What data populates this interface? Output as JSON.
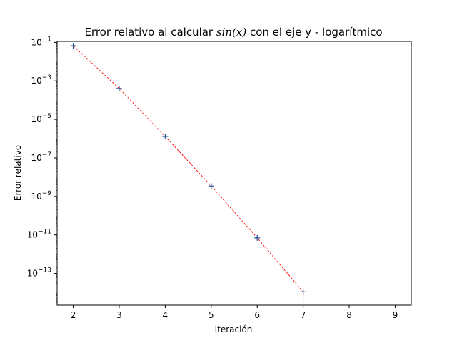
{
  "chart_data": {
    "type": "scatter",
    "title_prefix": "Error relativo al calcular ",
    "title_math": "sin(x)",
    "title_suffix": " con el eje y - logarítmico",
    "xlabel": "Iteración",
    "ylabel": "Error relativo",
    "xlim": [
      1.65,
      9.35
    ],
    "ylim_exponent": [
      -14.65,
      -0.95
    ],
    "yscale": "log",
    "x_ticks": [
      "2",
      "3",
      "4",
      "5",
      "6",
      "7",
      "8",
      "9"
    ],
    "y_tick_exponents": [
      "-1",
      "-3",
      "-5",
      "-7",
      "-9",
      "-11",
      "-13"
    ],
    "y_tick_base": "10",
    "grid": false,
    "series": [
      {
        "x": [
          2,
          3,
          4,
          5,
          6,
          7
        ],
        "y": [
          0.0667,
          0.0004,
          1.3e-06,
          3.5e-09,
          7e-12,
          1.1e-14
        ],
        "line_extends_below_axis_at_x": 7,
        "marker_color": "#1f4e9b",
        "line_color": "#ff0000"
      }
    ]
  }
}
